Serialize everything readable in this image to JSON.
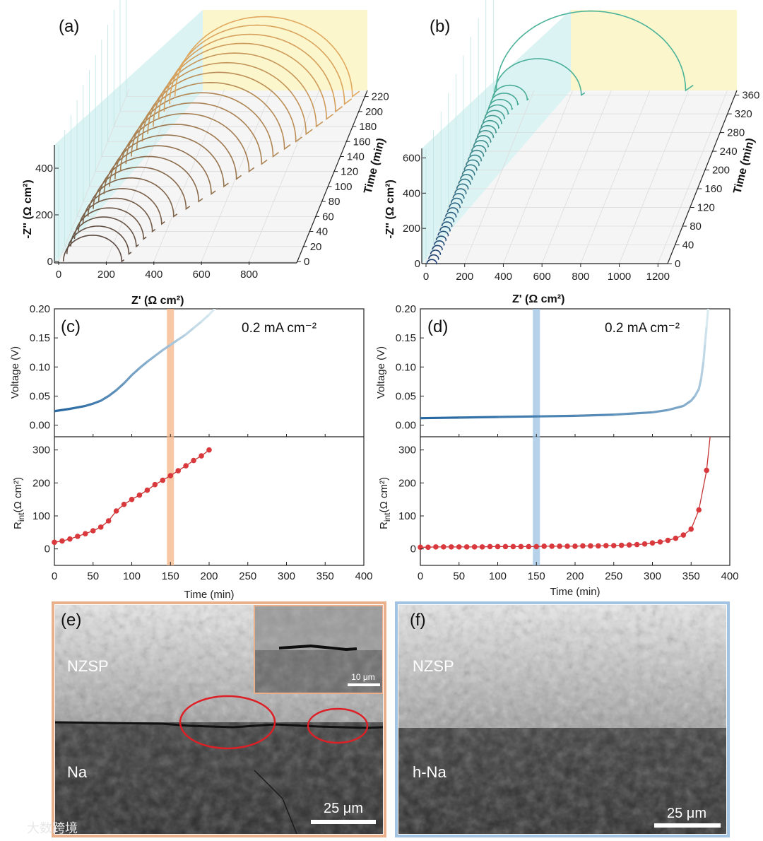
{
  "figure": {
    "panel_labels": [
      "(a)",
      "(b)",
      "(c)",
      "(d)",
      "(e)",
      "(f)"
    ],
    "current_density_label": "0.2 mA cm⁻²",
    "watermark": "大数跨境",
    "colors": {
      "nyquist_a_start": "#5a4a42",
      "nyquist_a_end": "#e1a85e",
      "nyquist_b_start": "#1d3e72",
      "nyquist_b_end": "#4bb39a",
      "wall_left": "#d6f1f1",
      "wall_back_a": "#fbf5c6",
      "wall_back_b": "#fbf5c6",
      "voltage_start": "#2869a2",
      "voltage_end": "#d9eaf1",
      "rint_point": "#d9393c",
      "rint_line": "#c63334",
      "highlight_c": "#f5b488",
      "highlight_d": "#9cc3e3",
      "border_e": "#e9b08b",
      "border_f": "#a3c3e3",
      "ellipse": "#dd1f26"
    }
  },
  "chart_data": [
    {
      "panel": "(a)",
      "type": "3d-line",
      "xlabel": "Z' (Ω cm²)",
      "ylabel": "Time (min)",
      "zlabel": "-Z'' (Ω cm²)",
      "x_ticks": [
        "0",
        "200",
        "400",
        "600",
        "800"
      ],
      "time_ticks": [
        "0",
        "20",
        "40",
        "60",
        "80",
        "100",
        "120",
        "140",
        "160",
        "180",
        "200",
        "220"
      ],
      "z_ticks": [
        "0",
        "200",
        "400"
      ],
      "xlim": [
        0,
        1000
      ],
      "time_lim": [
        0,
        230
      ],
      "zlim": [
        0,
        500
      ],
      "series_description": "Nyquist semicircles recorded every 10 min",
      "times": [
        0,
        10,
        20,
        30,
        40,
        50,
        60,
        70,
        80,
        90,
        100,
        110,
        120,
        130,
        140,
        150,
        160,
        170,
        180,
        190,
        200,
        210,
        220
      ],
      "semicircle_start_ohm": [
        20,
        22,
        25,
        28,
        32,
        38,
        46,
        55,
        65,
        75,
        85,
        95,
        105,
        115,
        125,
        135,
        145,
        155,
        165,
        175,
        185,
        195,
        205
      ],
      "semicircle_diameter_ohm": [
        245,
        260,
        275,
        290,
        310,
        330,
        360,
        390,
        420,
        450,
        480,
        510,
        540,
        570,
        595,
        620,
        645,
        665,
        685,
        705,
        720,
        735,
        745
      ]
    },
    {
      "panel": "(b)",
      "type": "3d-line",
      "xlabel": "Z' (Ω cm²)",
      "ylabel": "Time (min)",
      "zlabel": "-Z'' (Ω cm²)",
      "x_ticks": [
        "0",
        "200",
        "400",
        "600",
        "800",
        "1000",
        "1200"
      ],
      "time_ticks": [
        "0",
        "40",
        "80",
        "120",
        "160",
        "200",
        "240",
        "280",
        "320",
        "360"
      ],
      "z_ticks": [
        "0",
        "200",
        "400",
        "600"
      ],
      "xlim": [
        0,
        1250
      ],
      "time_lim": [
        0,
        370
      ],
      "zlim": [
        0,
        650
      ],
      "times": [
        0,
        10,
        20,
        30,
        40,
        50,
        60,
        70,
        80,
        90,
        100,
        110,
        120,
        130,
        140,
        150,
        160,
        170,
        180,
        190,
        200,
        210,
        220,
        230,
        240,
        250,
        260,
        270,
        280,
        290,
        300,
        310,
        320,
        330,
        340,
        350,
        360,
        370
      ],
      "semicircle_start_ohm": [
        5,
        5,
        5,
        5,
        5,
        5,
        5,
        5,
        5,
        5,
        5,
        5,
        5,
        5,
        5,
        5,
        5,
        5,
        5,
        5,
        5,
        5,
        5,
        5,
        5,
        5,
        5,
        5,
        5,
        5,
        5,
        5,
        5,
        5,
        5,
        5,
        5,
        5
      ],
      "semicircle_diameter_ohm": [
        50,
        50,
        50,
        50,
        50,
        50,
        52,
        52,
        52,
        52,
        54,
        54,
        55,
        56,
        56,
        57,
        58,
        60,
        60,
        62,
        64,
        66,
        68,
        70,
        72,
        75,
        78,
        82,
        86,
        90,
        95,
        100,
        110,
        120,
        140,
        180,
        450,
        980
      ]
    },
    {
      "panel": "(c)",
      "type": "line",
      "title": "0.2 mA cm⁻²",
      "xlabel": "Time (min)",
      "ylabel": "Voltage (V)",
      "xlim": [
        0,
        400
      ],
      "ylim": [
        -0.02,
        0.2
      ],
      "y_ticks": [
        "0.00",
        "0.05",
        "0.10",
        "0.15",
        "0.20"
      ],
      "x": [
        0,
        20,
        40,
        50,
        60,
        70,
        80,
        90,
        100,
        110,
        120,
        130,
        140,
        150,
        160,
        170,
        180,
        190,
        200,
        207
      ],
      "y": [
        0.024,
        0.028,
        0.033,
        0.037,
        0.042,
        0.05,
        0.06,
        0.072,
        0.086,
        0.098,
        0.109,
        0.119,
        0.129,
        0.138,
        0.147,
        0.156,
        0.167,
        0.178,
        0.19,
        0.2
      ],
      "highlight_x": 150
    },
    {
      "panel": "(c)",
      "type": "line+scatter",
      "xlabel": "Time (min)",
      "ylabel": "R_int (Ω cm²)",
      "ylabel_main": "R",
      "ylabel_sub": "int",
      "ylabel_rest": "(Ω cm²)",
      "xlim": [
        0,
        400
      ],
      "ylim": [
        -50,
        340
      ],
      "x_ticks": [
        "0",
        "50",
        "100",
        "150",
        "200",
        "250",
        "300",
        "350",
        "400"
      ],
      "y_ticks": [
        "0",
        "100",
        "200",
        "300"
      ],
      "x": [
        0,
        10,
        20,
        30,
        40,
        50,
        60,
        70,
        80,
        90,
        100,
        110,
        120,
        130,
        140,
        150,
        160,
        170,
        180,
        190,
        200
      ],
      "y": [
        20,
        24,
        30,
        38,
        46,
        55,
        66,
        85,
        115,
        135,
        150,
        163,
        178,
        195,
        208,
        222,
        237,
        252,
        268,
        282,
        300
      ],
      "highlight_x": 150
    },
    {
      "panel": "(d)",
      "type": "line",
      "title": "0.2 mA cm⁻²",
      "xlabel": "Time (min)",
      "ylabel": "Voltage (V)",
      "xlim": [
        0,
        400
      ],
      "ylim": [
        -0.02,
        0.2
      ],
      "y_ticks": [
        "0.00",
        "0.05",
        "0.10",
        "0.15",
        "0.20"
      ],
      "x": [
        0,
        50,
        100,
        150,
        200,
        250,
        300,
        320,
        340,
        350,
        355,
        360,
        363,
        366,
        368,
        370,
        372
      ],
      "y": [
        0.012,
        0.013,
        0.014,
        0.015,
        0.016,
        0.018,
        0.022,
        0.026,
        0.033,
        0.042,
        0.05,
        0.062,
        0.08,
        0.11,
        0.14,
        0.17,
        0.2
      ],
      "highlight_x": 150
    },
    {
      "panel": "(d)",
      "type": "line+scatter",
      "xlabel": "Time (min)",
      "ylabel": "R_int (Ω cm²)",
      "ylabel_main": "R",
      "ylabel_sub": "int",
      "ylabel_rest": "(Ω cm²)",
      "xlim": [
        0,
        400
      ],
      "ylim": [
        -50,
        340
      ],
      "x_ticks": [
        "0",
        "50",
        "100",
        "150",
        "200",
        "250",
        "300",
        "350",
        "400"
      ],
      "y_ticks": [
        "0",
        "100",
        "200",
        "300"
      ],
      "x": [
        0,
        10,
        20,
        30,
        40,
        50,
        60,
        70,
        80,
        90,
        100,
        110,
        120,
        130,
        140,
        150,
        160,
        170,
        180,
        190,
        200,
        210,
        220,
        230,
        240,
        250,
        260,
        270,
        280,
        290,
        300,
        310,
        320,
        330,
        340,
        350,
        360,
        370
      ],
      "y": [
        5,
        5,
        6,
        6,
        6,
        6,
        6,
        6,
        6,
        7,
        7,
        7,
        7,
        7,
        7,
        7,
        8,
        8,
        8,
        8,
        8,
        9,
        9,
        9,
        10,
        10,
        11,
        12,
        13,
        15,
        18,
        21,
        26,
        32,
        42,
        60,
        118,
        238
      ],
      "highlight_x": 150
    }
  ],
  "sem_images": [
    {
      "panel": "(e)",
      "top_label": "NZSP",
      "bottom_label": "Na",
      "scale_bar": "25 μm",
      "inset_scale_bar": "10 μm"
    },
    {
      "panel": "(f)",
      "top_label": "NZSP",
      "bottom_label": "h-Na",
      "scale_bar": "25 μm"
    }
  ]
}
